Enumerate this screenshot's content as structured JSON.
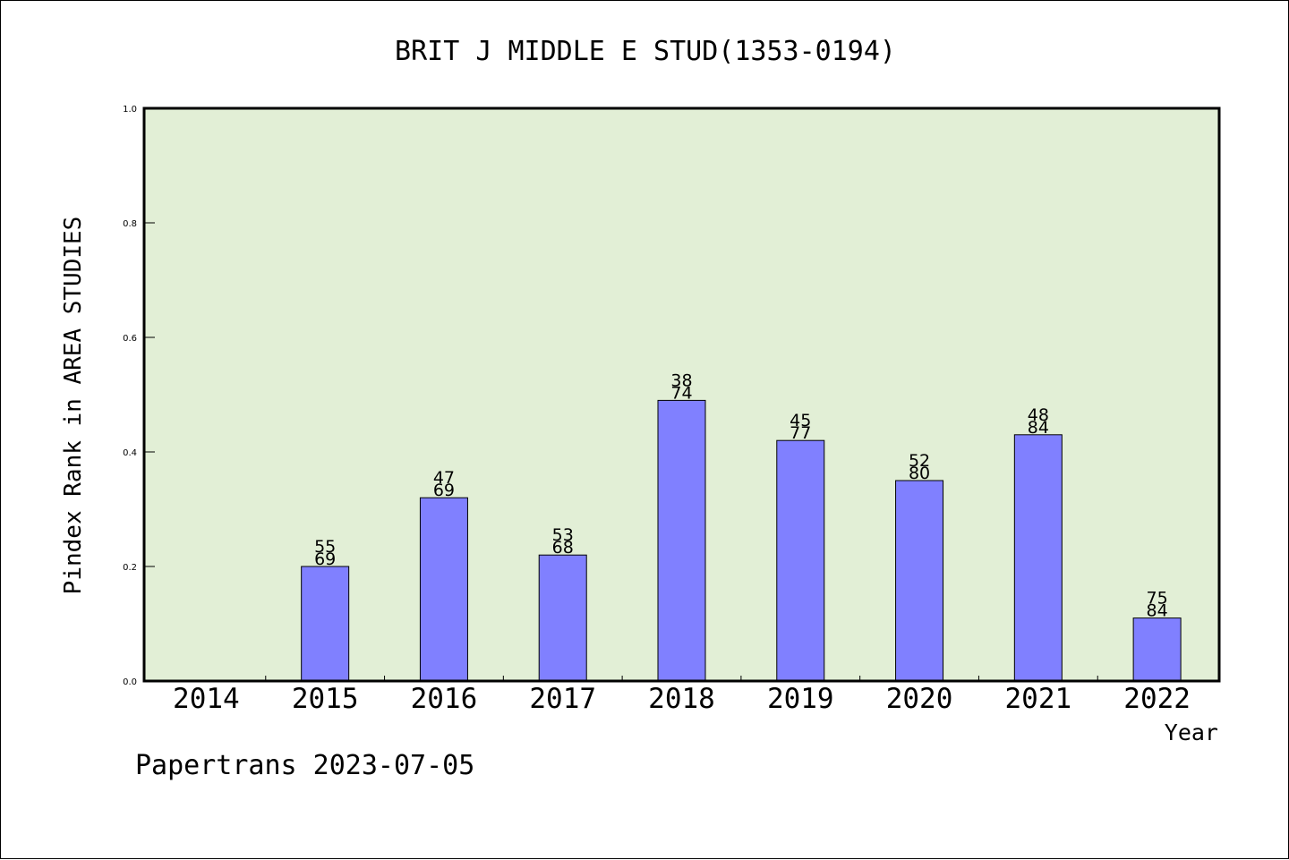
{
  "chart_data": {
    "type": "bar",
    "title": "BRIT J MIDDLE E STUD(1353-0194)",
    "xlabel": "Year",
    "ylabel": "Pindex Rank in AREA STUDIES",
    "categories": [
      "2014",
      "2015",
      "2016",
      "2017",
      "2018",
      "2019",
      "2020",
      "2021",
      "2022"
    ],
    "values": [
      null,
      0.2,
      0.32,
      0.22,
      0.49,
      0.42,
      0.35,
      0.43,
      0.11
    ],
    "bar_labels": [
      null,
      [
        "55",
        "69"
      ],
      [
        "47",
        "69"
      ],
      [
        "53",
        "68"
      ],
      [
        "38",
        "74"
      ],
      [
        "45",
        "77"
      ],
      [
        "52",
        "80"
      ],
      [
        "48",
        "84"
      ],
      [
        "75",
        "84"
      ]
    ],
    "ylim": [
      0,
      1.0
    ],
    "yticks": [
      "0.0",
      "0.2",
      "0.4",
      "0.6",
      "0.8",
      "1.0"
    ],
    "grid": false,
    "colors": {
      "plot_background": "#e2efd6",
      "bar_fill": "#8080ff",
      "bar_stroke": "#000000"
    }
  },
  "footer": {
    "source": "Papertrans 2023-07-05"
  }
}
